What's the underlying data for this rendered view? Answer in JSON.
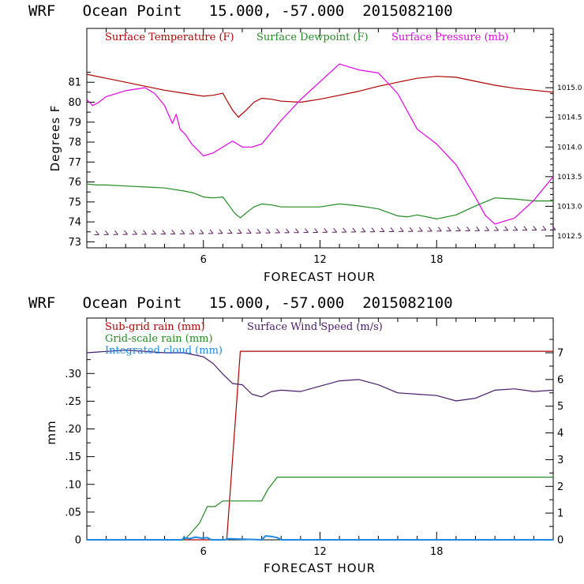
{
  "chart_data": [
    {
      "type": "line",
      "title": "WRF   Ocean Point   15.000, -57.000  2015082100",
      "xlabel": "FORECAST HOUR",
      "ylabel": "Degrees F",
      "xlim": [
        0,
        24
      ],
      "ylim": [
        72.7,
        83.7
      ],
      "x_ticks": [
        6,
        12,
        18
      ],
      "y_ticks": [
        73,
        74,
        75,
        76,
        77,
        78,
        79,
        80,
        81
      ],
      "y2lim": [
        1012.3,
        1016.0
      ],
      "y2_ticks": [
        1012.5,
        1013.0,
        1013.5,
        1014.0,
        1014.5,
        1015.0
      ],
      "y2_tick_labels": [
        "1012.5",
        "1013.0",
        "1013.5",
        "1014.0",
        "1014.5",
        "1015.0"
      ],
      "series": [
        {
          "name": "Surface Temperature (F)",
          "color": "#b00000",
          "axis": "left",
          "x": [
            0,
            1,
            2,
            3,
            4,
            5,
            6,
            6.5,
            7,
            7.2,
            7.5,
            7.8,
            8.2,
            8.6,
            9,
            9.5,
            10,
            11,
            12,
            13,
            14,
            15,
            16,
            17,
            18,
            19,
            20,
            21,
            22,
            23,
            24
          ],
          "y": [
            81.4,
            81.2,
            81.0,
            80.8,
            80.6,
            80.45,
            80.3,
            80.35,
            80.45,
            80.1,
            79.6,
            79.25,
            79.6,
            80.0,
            80.2,
            80.15,
            80.05,
            80.0,
            80.15,
            80.35,
            80.55,
            80.8,
            81.0,
            81.2,
            81.3,
            81.25,
            81.05,
            80.85,
            80.7,
            80.6,
            80.5
          ]
        },
        {
          "name": "Surface Dewpoint (F)",
          "color": "#228b22",
          "axis": "left",
          "x": [
            0,
            0.5,
            1,
            2,
            3,
            4,
            5,
            5.5,
            6,
            6.5,
            7,
            7.3,
            7.6,
            7.9,
            8.2,
            8.6,
            9,
            9.5,
            10,
            11,
            12,
            13,
            14,
            15,
            16,
            16.5,
            17,
            18,
            19,
            20,
            21,
            22,
            23,
            24
          ],
          "y": [
            75.9,
            75.85,
            75.85,
            75.8,
            75.75,
            75.7,
            75.55,
            75.45,
            75.25,
            75.2,
            75.25,
            74.85,
            74.45,
            74.2,
            74.45,
            74.75,
            74.9,
            74.85,
            74.75,
            74.75,
            74.75,
            74.9,
            74.8,
            74.65,
            74.3,
            74.25,
            74.35,
            74.15,
            74.35,
            74.8,
            75.2,
            75.15,
            75.05,
            75.05
          ]
        },
        {
          "name": "Surface Pressure (mb)",
          "color": "#e600e6",
          "axis": "right",
          "x": [
            0,
            0.3,
            0.6,
            1,
            2,
            3,
            3.5,
            4,
            4.4,
            4.6,
            4.8,
            5.1,
            5.4,
            6,
            6.5,
            7,
            7.5,
            8,
            8.5,
            9,
            10,
            11,
            12,
            13,
            13.5,
            14,
            15,
            16,
            17,
            18,
            19,
            20,
            20.5,
            21,
            22,
            22.5,
            23,
            24
          ],
          "y": [
            1014.8,
            1014.7,
            1014.75,
            1014.85,
            1014.95,
            1015.0,
            1014.9,
            1014.7,
            1014.4,
            1014.55,
            1014.3,
            1014.2,
            1014.05,
            1013.85,
            1013.9,
            1014.0,
            1014.1,
            1014.0,
            1014.0,
            1014.05,
            1014.45,
            1014.8,
            1015.1,
            1015.4,
            1015.35,
            1015.3,
            1015.25,
            1014.9,
            1014.3,
            1014.05,
            1013.7,
            1013.15,
            1012.85,
            1012.7,
            1012.8,
            1012.95,
            1013.1,
            1013.5
          ]
        },
        {
          "name": "Surface Wind Barbs",
          "color": "#5a1a5a",
          "axis": "left",
          "x": [
            0,
            24
          ],
          "y": [
            73.35,
            73.6
          ]
        }
      ],
      "legend": [
        "Surface Temperature (F)",
        "Surface Dewpoint (F)",
        "Surface Pressure (mb)"
      ]
    },
    {
      "type": "line",
      "title": "WRF   Ocean Point   15.000, -57.000  2015082100",
      "xlabel": "FORECAST HOUR",
      "ylabel": "mm",
      "xlim": [
        0,
        24
      ],
      "ylim": [
        0,
        0.4
      ],
      "x_ticks": [
        6,
        12,
        18
      ],
      "y_ticks": [
        0,
        0.05,
        0.1,
        0.15,
        0.2,
        0.25,
        0.3
      ],
      "y_tick_labels": [
        "0",
        ".05",
        ".10",
        ".15",
        ".20",
        ".25",
        ".30"
      ],
      "y2lim": [
        0,
        8.3
      ],
      "y2_ticks": [
        0,
        1,
        2,
        3,
        4,
        5,
        6,
        7
      ],
      "y2_tick_labels": [
        "0",
        "1",
        "2",
        "3",
        "4",
        "5",
        "6",
        "7"
      ],
      "series": [
        {
          "name": "Sub-grid rain (mm)",
          "color": "#b00000",
          "axis": "left",
          "x": [
            0,
            7.2,
            7.9,
            24
          ],
          "y": [
            0,
            0,
            0.34,
            0.34
          ]
        },
        {
          "name": "Grid-scale rain (mm)",
          "color": "#228b22",
          "axis": "left",
          "x": [
            0,
            5,
            5.3,
            5.8,
            6.2,
            6.6,
            7.0,
            7.4,
            8,
            9.0,
            9.3,
            9.8,
            24
          ],
          "y": [
            0,
            0,
            0.01,
            0.03,
            0.06,
            0.06,
            0.07,
            0.07,
            0.07,
            0.07,
            0.09,
            0.113,
            0.113
          ]
        },
        {
          "name": "Integrated cloud (mm)",
          "color": "#1e88e5",
          "axis": "left",
          "x": [
            0,
            4.9,
            5.0,
            5.3,
            5.6,
            5.9,
            6.2,
            6.4,
            7.1,
            7.3,
            9.0,
            9.2,
            9.5,
            9.8,
            10,
            24
          ],
          "y": [
            0,
            0,
            0.004,
            0.002,
            0.005,
            0.003,
            0.004,
            0,
            0,
            0.002,
            0,
            0.007,
            0.006,
            0.004,
            0,
            0
          ]
        },
        {
          "name": "Surface Wind Speed (m/s)",
          "color": "#4b1a6b",
          "axis": "right",
          "x": [
            0,
            1,
            2,
            3,
            4,
            5,
            6,
            6.5,
            7,
            7.5,
            8,
            8.5,
            9,
            9.5,
            10,
            11,
            12,
            13,
            14,
            15,
            16,
            17,
            18,
            19,
            20,
            21,
            22,
            23,
            24
          ],
          "y": [
            7.0,
            7.05,
            7.1,
            7.05,
            7.0,
            7.0,
            6.85,
            6.6,
            6.2,
            5.85,
            5.8,
            5.45,
            5.35,
            5.55,
            5.6,
            5.55,
            5.75,
            5.95,
            6.0,
            5.8,
            5.5,
            5.45,
            5.4,
            5.2,
            5.3,
            5.6,
            5.65,
            5.55,
            5.6
          ]
        }
      ],
      "legend": [
        "Sub-grid rain (mm)",
        "Surface Wind Speed (m/s)",
        "Grid-scale rain (mm)",
        "Integrated cloud (mm)"
      ]
    }
  ]
}
